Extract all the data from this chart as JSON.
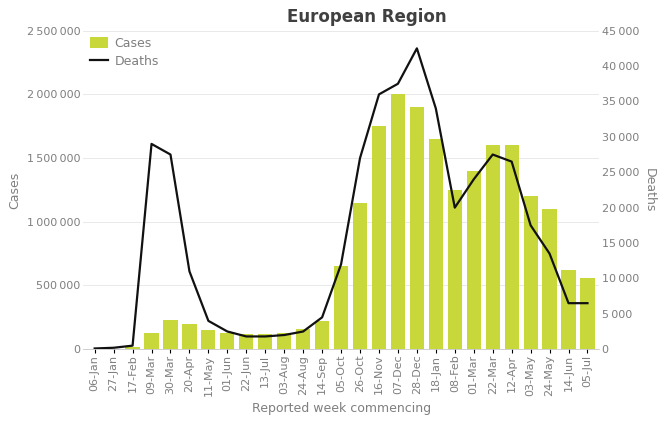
{
  "title": "European Region",
  "xlabel": "Reported week commencing",
  "ylabel_left": "Cases",
  "ylabel_right": "Deaths",
  "bar_color": "#c8d83a",
  "line_color": "#111111",
  "background_color": "#ffffff",
  "text_color": "#7f7f7f",
  "title_color": "#404040",
  "xlabels": [
    "06-Jan",
    "27-Jan",
    "17-Feb",
    "09-Mar",
    "30-Mar",
    "20-Apr",
    "11-May",
    "01-Jun",
    "22-Jun",
    "13-Jul",
    "03-Aug",
    "24-Aug",
    "14-Sep",
    "05-Oct",
    "26-Oct",
    "16-Nov",
    "07-Dec",
    "28-Dec",
    "18-Jan",
    "08-Feb",
    "01-Mar",
    "22-Mar",
    "12-Apr",
    "03-May",
    "24-May",
    "14-Jun",
    "05-Jul"
  ],
  "cases": [
    2000,
    5000,
    15000,
    130000,
    230000,
    200000,
    150000,
    130000,
    120000,
    120000,
    130000,
    160000,
    220000,
    650000,
    1150000,
    1750000,
    2000000,
    1900000,
    1650000,
    1250000,
    1400000,
    1600000,
    1600000,
    1200000,
    1100000,
    620000,
    560000
  ],
  "deaths": [
    100,
    200,
    500,
    29000,
    27500,
    11000,
    4000,
    2500,
    1800,
    1800,
    2000,
    2500,
    4500,
    12000,
    27000,
    36000,
    37500,
    42500,
    34000,
    20000,
    24000,
    27500,
    26500,
    17500,
    13500,
    6500,
    6500
  ],
  "ylim_left": [
    0,
    2500000
  ],
  "ylim_right": [
    0,
    45000
  ],
  "yticks_left": [
    0,
    500000,
    1000000,
    1500000,
    2000000,
    2500000
  ],
  "yticks_right": [
    0,
    5000,
    10000,
    15000,
    20000,
    25000,
    30000,
    35000,
    40000,
    45000
  ],
  "title_fontsize": 12,
  "label_fontsize": 9,
  "tick_fontsize": 8,
  "legend_fontsize": 9
}
